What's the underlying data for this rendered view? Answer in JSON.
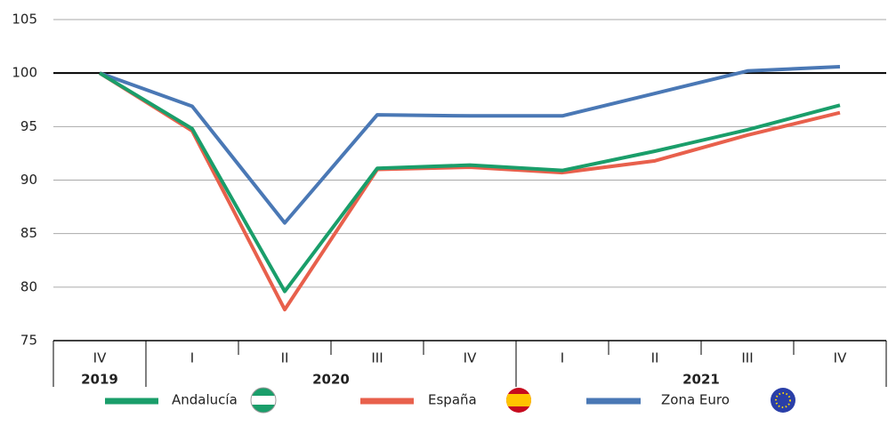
{
  "chart_data": {
    "type": "line",
    "categories": [
      "IV",
      "I",
      "II",
      "III",
      "IV",
      "I",
      "II",
      "III",
      "IV"
    ],
    "groups": [
      {
        "label": "2019",
        "count": 1
      },
      {
        "label": "2020",
        "count": 4
      },
      {
        "label": "2021",
        "count": 4
      }
    ],
    "series": [
      {
        "name": "Andalucía",
        "color": "#1a9e6a",
        "values": [
          100,
          94.8,
          79.6,
          91.1,
          91.4,
          90.9,
          92.7,
          94.7,
          97.0
        ]
      },
      {
        "name": "España",
        "color": "#e8604c",
        "values": [
          100,
          94.6,
          77.9,
          91.0,
          91.2,
          90.7,
          91.8,
          94.2,
          96.3
        ]
      },
      {
        "name": "Zona Euro",
        "color": "#4a78b5",
        "values": [
          100,
          96.9,
          86.0,
          96.1,
          96.0,
          96.0,
          98.1,
          100.2,
          100.6
        ]
      }
    ],
    "ylim": [
      75,
      105
    ],
    "yticks": [
      75,
      80,
      85,
      90,
      95,
      100,
      105
    ],
    "reference_line": 100,
    "grid": true
  }
}
